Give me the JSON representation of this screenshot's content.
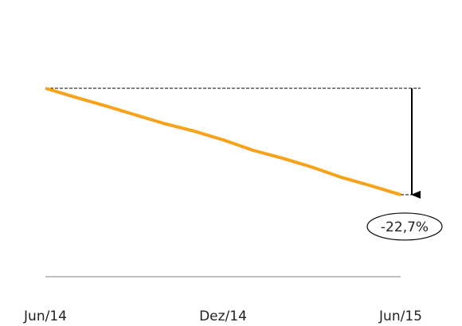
{
  "chart_data": {
    "type": "line",
    "categories": [
      "Jun/14",
      null,
      null,
      null,
      null,
      null,
      "Dez/14",
      null,
      null,
      null,
      null,
      null,
      "Jun/15"
    ],
    "series": [
      {
        "color": "#f7a21b",
        "values": [
          100,
          98.1,
          96.3,
          94.4,
          92.5,
          90.9,
          89.0,
          86.8,
          85.1,
          83.2,
          81.0,
          79.2,
          77.3
        ]
      }
    ],
    "ylim": [
      60,
      105
    ],
    "annotation": "-22,7%"
  }
}
